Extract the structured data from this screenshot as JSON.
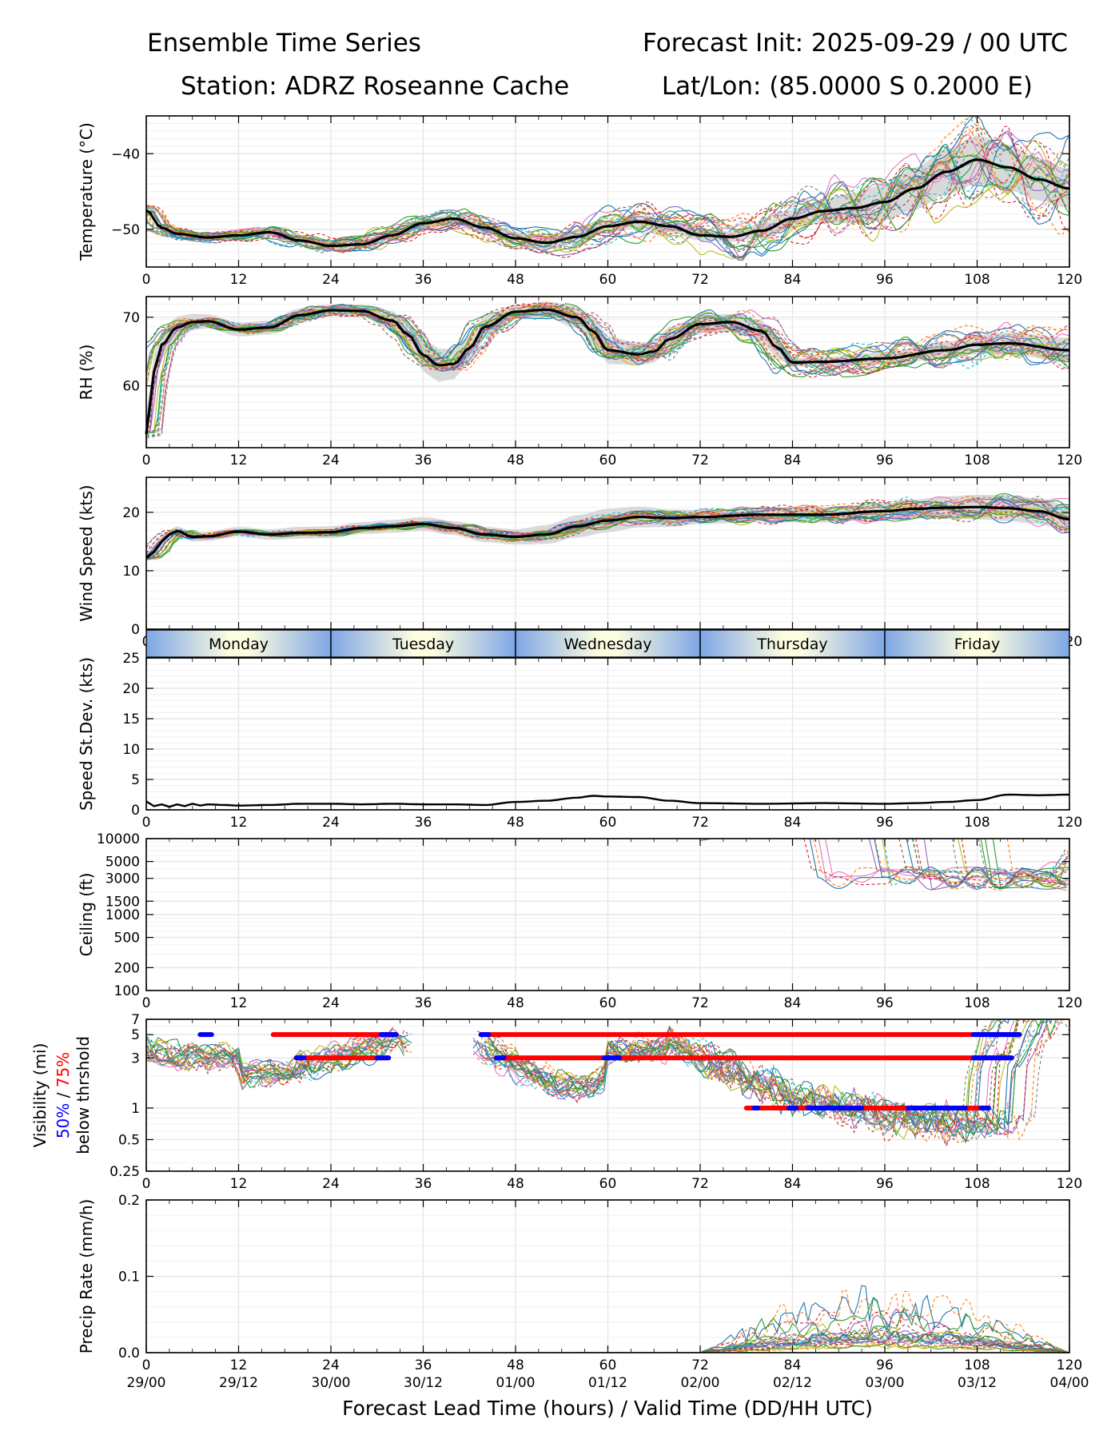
{
  "header": {
    "title_left": "Ensemble Time Series",
    "title_right": "Forecast Init: 2025-09-29 / 00 UTC",
    "station": "Station: ADRZ Roseanne Cache",
    "latlon": "Lat/Lon: (85.0000 S 0.2000 E)"
  },
  "x_axis": {
    "label": "Forecast Lead Time (hours) / Valid Time (DD/HH UTC)",
    "lead_ticks": [
      "0",
      "12",
      "24",
      "36",
      "48",
      "60",
      "72",
      "84",
      "96",
      "108",
      "120"
    ],
    "valid_ticks": [
      "29/00",
      "29/12",
      "30/00",
      "30/12",
      "01/00",
      "01/12",
      "02/00",
      "02/12",
      "03/00",
      "03/12",
      "04/00"
    ],
    "xlim": [
      0,
      120
    ]
  },
  "day_bar": [
    "Monday",
    "Tuesday",
    "Wednesday",
    "Thursday",
    "Friday"
  ],
  "colors": {
    "mean": "#000000",
    "spread": "#d9d9d9",
    "threshold_50": "#0000ff",
    "threshold_75": "#ff0000",
    "members": [
      "#1f77b4",
      "#ff7f0e",
      "#2ca02c",
      "#d62728",
      "#9467bd",
      "#8c564b",
      "#e377c2",
      "#7f7f7f",
      "#bcbd22",
      "#17becf"
    ]
  },
  "chart_data": [
    {
      "type": "line",
      "name": "temperature",
      "ylabel": "Temperature (°C)",
      "ylim": [
        -55,
        -35
      ],
      "y_ticks": [
        "−40",
        "−50"
      ],
      "mean": {
        "x": [
          0,
          2,
          4,
          8,
          12,
          16,
          20,
          24,
          28,
          32,
          36,
          40,
          44,
          48,
          52,
          56,
          60,
          64,
          68,
          72,
          76,
          80,
          84,
          88,
          92,
          96,
          100,
          104,
          108,
          112,
          116,
          120
        ],
        "y": [
          -47.5,
          -49.8,
          -50.6,
          -51.1,
          -50.8,
          -50.4,
          -51.5,
          -52.2,
          -52.0,
          -50.8,
          -49.2,
          -48.6,
          -49.8,
          -51.2,
          -51.8,
          -51.0,
          -49.6,
          -49.0,
          -49.6,
          -50.8,
          -51.0,
          -50.2,
          -48.6,
          -47.6,
          -47.2,
          -46.4,
          -44.6,
          -42.4,
          -40.8,
          -41.8,
          -43.4,
          -44.6
        ]
      },
      "spread_width": [
        0.3,
        0.4,
        0.4,
        0.4,
        0.4,
        0.5,
        0.6,
        0.6,
        0.6,
        0.6,
        0.6,
        0.6,
        0.7,
        0.8,
        0.9,
        0.9,
        0.8,
        0.8,
        0.8,
        0.7,
        0.7,
        0.9,
        1.2,
        1.6,
        2.0,
        2.4,
        2.8,
        3.0,
        3.2,
        3.0,
        2.8,
        2.6
      ],
      "members": 24,
      "noise": 1.8,
      "noise_growth": 2.6
    },
    {
      "type": "line",
      "name": "rh",
      "ylabel": "RH (%)",
      "ylim": [
        51,
        73
      ],
      "y_ticks": [
        "70",
        "60"
      ],
      "mean": {
        "x": [
          0,
          1,
          2,
          4,
          6,
          8,
          12,
          16,
          20,
          24,
          28,
          32,
          34,
          36,
          38,
          40,
          42,
          44,
          48,
          52,
          56,
          58,
          60,
          64,
          66,
          68,
          72,
          76,
          80,
          82,
          84,
          88,
          96,
          104,
          108,
          112,
          120
        ],
        "y": [
          53,
          62,
          66,
          68.5,
          69.3,
          69.4,
          68.2,
          68.5,
          70.3,
          71.0,
          70.9,
          69.5,
          67.5,
          64.5,
          63.0,
          63.2,
          65.5,
          68.6,
          70.8,
          71.1,
          70.0,
          68.0,
          65.2,
          64.6,
          65.0,
          66.8,
          69.0,
          69.3,
          68.0,
          65.6,
          63.4,
          63.5,
          64.0,
          65.2,
          66.0,
          66.2,
          65.2
        ]
      },
      "spread_width": [
        3,
        2.5,
        2,
        1.6,
        1.2,
        1,
        1,
        1,
        1,
        0.8,
        0.9,
        1.4,
        2.0,
        2.4,
        2.4,
        2.2,
        2.0,
        1.6,
        1.0,
        1.2,
        1.6,
        2.0,
        2.0,
        1.6,
        1.6,
        1.8,
        1.2,
        1.2,
        1.6,
        1.6,
        0.6,
        0.7,
        0.9,
        1.2,
        1.4,
        1.6,
        1.8
      ],
      "members": 24,
      "noise": 1.6,
      "noise_growth": 1.2
    },
    {
      "type": "line",
      "name": "wind_speed",
      "ylabel": "Wind Speed (kts)",
      "ylim": [
        0,
        26
      ],
      "y_ticks": [
        "20",
        "10",
        "0"
      ],
      "mean": {
        "x": [
          0,
          1,
          2,
          3,
          4,
          6,
          8,
          12,
          16,
          20,
          24,
          28,
          32,
          36,
          40,
          44,
          48,
          52,
          56,
          60,
          64,
          68,
          72,
          80,
          88,
          96,
          100,
          104,
          108,
          112,
          116,
          120
        ],
        "y": [
          12.2,
          13.2,
          15.0,
          16.2,
          16.8,
          15.8,
          15.9,
          16.7,
          16.2,
          16.5,
          16.6,
          17.3,
          17.6,
          18.0,
          17.3,
          16.2,
          15.8,
          16.2,
          17.6,
          18.6,
          19.2,
          19.0,
          19.2,
          19.6,
          19.6,
          20.2,
          20.6,
          20.8,
          20.9,
          20.7,
          20.2,
          18.8
        ]
      },
      "spread_width": [
        0.6,
        0.8,
        0.8,
        0.8,
        0.8,
        0.8,
        0.8,
        0.8,
        0.9,
        1.0,
        1.0,
        1.0,
        1.1,
        1.2,
        1.2,
        1.3,
        1.3,
        1.6,
        1.9,
        2.0,
        1.8,
        1.5,
        1.2,
        1.2,
        1.3,
        1.4,
        1.6,
        1.9,
        2.1,
        2.2,
        2.2,
        2.2
      ],
      "members": 24,
      "noise": 1.0,
      "noise_growth": 1.8
    },
    {
      "type": "line",
      "name": "speed_stdev",
      "ylabel": "Speed St.Dev. (kts)",
      "ylim": [
        0,
        25
      ],
      "y_ticks": [
        "25",
        "20",
        "15",
        "10",
        "5",
        "0"
      ],
      "x": [
        0,
        1,
        2,
        3,
        4,
        5,
        6,
        7,
        8,
        10,
        12,
        16,
        20,
        24,
        28,
        32,
        36,
        40,
        44,
        48,
        52,
        56,
        58,
        60,
        64,
        68,
        72,
        80,
        88,
        96,
        100,
        104,
        108,
        112,
        116,
        120
      ],
      "y": [
        1.4,
        0.6,
        0.9,
        0.5,
        0.9,
        0.6,
        1.0,
        0.7,
        0.9,
        0.8,
        0.7,
        0.8,
        1.0,
        1.0,
        0.9,
        1.0,
        0.9,
        0.9,
        0.8,
        1.3,
        1.5,
        2.0,
        2.3,
        2.2,
        2.1,
        1.5,
        1.1,
        1.0,
        1.1,
        1.0,
        1.1,
        1.3,
        1.6,
        2.5,
        2.4,
        2.5
      ]
    },
    {
      "type": "line",
      "name": "ceiling",
      "ylabel": "Ceiling (ft)",
      "scale": "log",
      "ylim": [
        100,
        10000
      ],
      "y_ticks": [
        "10000",
        "5000",
        "3000",
        "1500",
        "1000",
        "500",
        "200",
        "100"
      ],
      "members": 24,
      "typical_ft": 3000,
      "onset_hours": [
        83.5,
        112
      ]
    },
    {
      "type": "line",
      "name": "visibility",
      "ylabel_parts": [
        "Visibility (mi)",
        "50%",
        " / ",
        "75%",
        "below thrshold"
      ],
      "scale": "log",
      "ylim": [
        0.25,
        7
      ],
      "y_ticks": [
        "7",
        "5",
        "3",
        "1",
        "0.5",
        "0.25"
      ],
      "members": 24,
      "thresholds": [
        {
          "level": 5,
          "segments_75": [
            [
              16.5,
              32.5
            ],
            [
              43.5,
              113.5
            ]
          ],
          "segments_50": [
            [
              7,
              8.5
            ],
            [
              30.5,
              32.5
            ],
            [
              43.5,
              44.5
            ],
            [
              107.5,
              113.5
            ]
          ]
        },
        {
          "level": 3,
          "segments_75": [
            [
              19.5,
              31.5
            ],
            [
              45.5,
              112.5
            ]
          ],
          "segments_50": [
            [
              19.5,
              20.5
            ],
            [
              30,
              31.5
            ],
            [
              45.5,
              46.5
            ],
            [
              59.5,
              61.5
            ],
            [
              107.5,
              112.5
            ]
          ]
        },
        {
          "level": 1,
          "segments_75": [
            [
              78,
              108.5
            ]
          ],
          "segments_50": [
            [
              79,
              79.5
            ],
            [
              83.5,
              84.5
            ],
            [
              86,
              93
            ],
            [
              99,
              106.5
            ],
            [
              108.5,
              109.5
            ]
          ]
        }
      ]
    },
    {
      "type": "line",
      "name": "precip_rate",
      "ylabel": "Precip Rate (mm/h)",
      "ylim": [
        0,
        0.2
      ],
      "y_ticks": [
        "0.2",
        "0.1",
        "0.0"
      ],
      "members": 24,
      "peak_values": [
        0.1,
        0.093,
        0.072,
        0.06,
        0.05
      ]
    }
  ]
}
